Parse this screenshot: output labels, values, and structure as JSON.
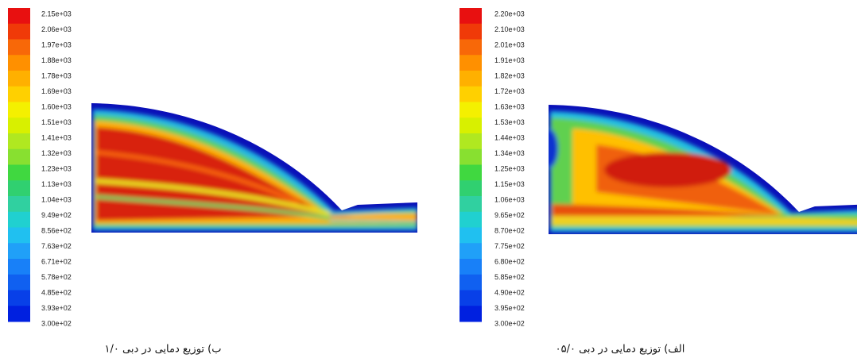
{
  "panels": [
    {
      "legend": [
        "2.15e+03",
        "2.06e+03",
        "1.97e+03",
        "1.88e+03",
        "1.78e+03",
        "1.69e+03",
        "1.60e+03",
        "1.51e+03",
        "1.41e+03",
        "1.32e+03",
        "1.23e+03",
        "1.13e+03",
        "1.04e+03",
        "9.49e+02",
        "8.56e+02",
        "7.63e+02",
        "6.71e+02",
        "5.78e+02",
        "4.85e+02",
        "3.93e+02",
        "3.00e+02"
      ],
      "caption": "ب) توزیع دمایی در دبی ۱/۰"
    },
    {
      "legend": [
        "2.20e+03",
        "2.10e+03",
        "2.01e+03",
        "1.91e+03",
        "1.82e+03",
        "1.72e+03",
        "1.63e+03",
        "1.53e+03",
        "1.44e+03",
        "1.34e+03",
        "1.25e+03",
        "1.15e+03",
        "1.06e+03",
        "9.65e+02",
        "8.70e+02",
        "7.75e+02",
        "6.80e+02",
        "5.85e+02",
        "4.90e+02",
        "3.95e+02",
        "3.00e+02"
      ],
      "caption": "الف) توزیع دمایی در دبی ۰۵/۰"
    }
  ]
}
